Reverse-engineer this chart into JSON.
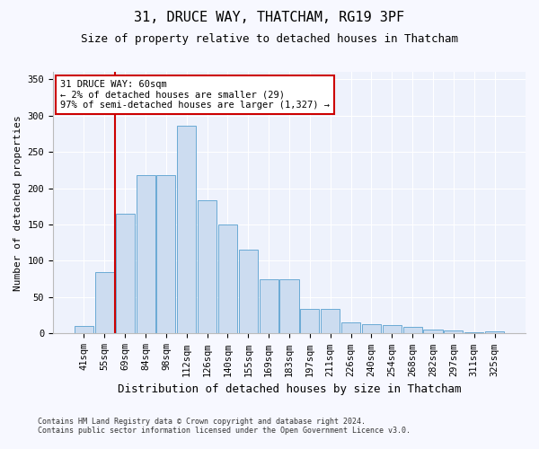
{
  "title1": "31, DRUCE WAY, THATCHAM, RG19 3PF",
  "title2": "Size of property relative to detached houses in Thatcham",
  "xlabel": "Distribution of detached houses by size in Thatcham",
  "ylabel": "Number of detached properties",
  "categories": [
    "41sqm",
    "55sqm",
    "69sqm",
    "84sqm",
    "98sqm",
    "112sqm",
    "126sqm",
    "140sqm",
    "155sqm",
    "169sqm",
    "183sqm",
    "197sqm",
    "211sqm",
    "226sqm",
    "240sqm",
    "254sqm",
    "268sqm",
    "282sqm",
    "297sqm",
    "311sqm",
    "325sqm"
  ],
  "values": [
    10,
    84,
    165,
    218,
    218,
    286,
    183,
    150,
    115,
    75,
    75,
    34,
    34,
    15,
    13,
    12,
    9,
    6,
    4,
    2,
    3
  ],
  "bar_color": "#ccdcf0",
  "bar_edge_color": "#6aaad4",
  "ylim": [
    0,
    360
  ],
  "yticks": [
    0,
    50,
    100,
    150,
    200,
    250,
    300,
    350
  ],
  "annotation_text": "31 DRUCE WAY: 60sqm\n← 2% of detached houses are smaller (29)\n97% of semi-detached houses are larger (1,327) →",
  "annotation_box_color": "#ffffff",
  "annotation_box_edge": "#cc0000",
  "vline_color": "#cc0000",
  "vline_x": 1.5,
  "footer1": "Contains HM Land Registry data © Crown copyright and database right 2024.",
  "footer2": "Contains public sector information licensed under the Open Government Licence v3.0.",
  "bg_color": "#f7f8ff",
  "plot_bg_color": "#eef2fc",
  "grid_color": "#ffffff",
  "title1_fontsize": 11,
  "title2_fontsize": 9,
  "xlabel_fontsize": 9,
  "ylabel_fontsize": 8,
  "tick_fontsize": 7.5,
  "annotation_fontsize": 7.5,
  "footer_fontsize": 6
}
